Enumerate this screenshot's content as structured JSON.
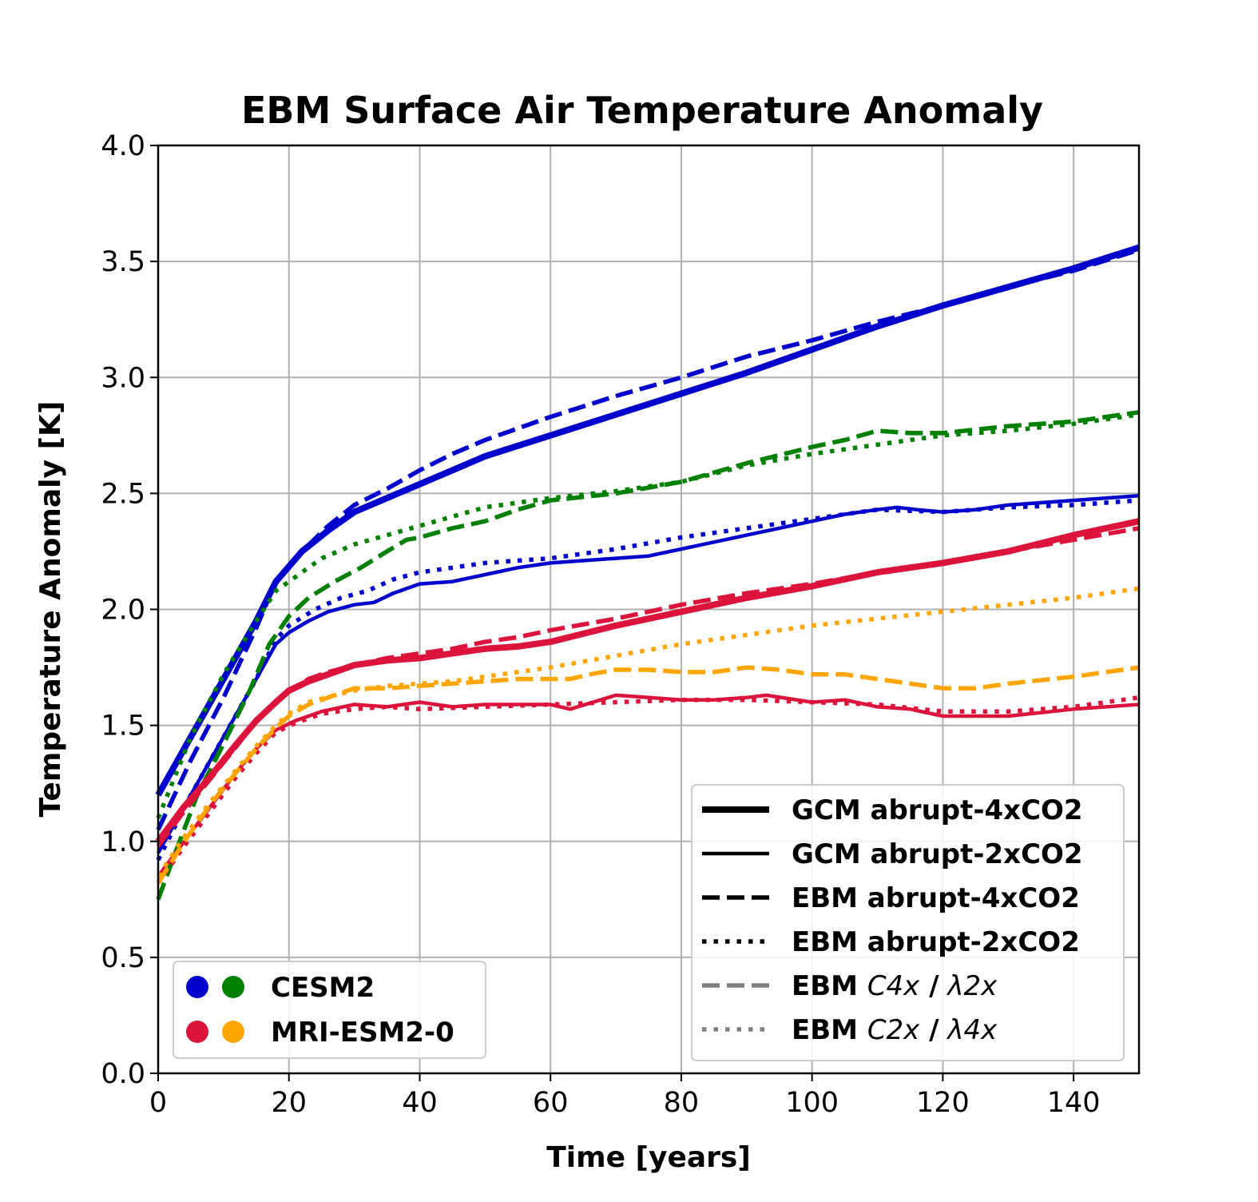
{
  "chart_data": {
    "type": "line",
    "title": "EBM Surface Air Temperature Anomaly",
    "xlabel": "Time [years]",
    "ylabel": "Temperature Anomaly [K]",
    "xlim": [
      0,
      150
    ],
    "ylim": [
      0.0,
      4.0
    ],
    "x_ticks": [
      0,
      20,
      40,
      60,
      80,
      100,
      120,
      140
    ],
    "x_tick_labels": [
      "0",
      "20",
      "40",
      "60",
      "80",
      "100",
      "120",
      "140"
    ],
    "y_ticks": [
      0.0,
      0.5,
      1.0,
      1.5,
      2.0,
      2.5,
      3.0,
      3.5,
      4.0
    ],
    "y_tick_labels": [
      "0.0",
      "0.5",
      "1.0",
      "1.5",
      "2.0",
      "2.5",
      "3.0",
      "3.5",
      "4.0"
    ],
    "grid": true,
    "style_legend": {
      "placement": "lower-right",
      "entries": [
        {
          "bold": "GCM abrupt-4xCO2",
          "ital": "",
          "tail": "",
          "style": "thick-solid",
          "color": "#000000"
        },
        {
          "bold": "GCM abrupt-2xCO2",
          "ital": "",
          "tail": "",
          "style": "solid",
          "color": "#000000"
        },
        {
          "bold": "EBM abrupt-4xCO2",
          "ital": "",
          "tail": "",
          "style": "dashed",
          "color": "#000000"
        },
        {
          "bold": "EBM abrupt-2xCO2",
          "ital": "",
          "tail": "",
          "style": "dotted",
          "color": "#000000"
        },
        {
          "bold": "EBM ",
          "ital": "C4x",
          "tail": " / λ2x",
          "style": "dashed",
          "color": "#808080"
        },
        {
          "bold": "EBM ",
          "ital": "C2x",
          "tail": " / λ4x",
          "style": "dotted",
          "color": "#808080"
        }
      ]
    },
    "model_legend": {
      "placement": "lower-left",
      "entries": [
        {
          "label": "CESM2",
          "colors": [
            "#0000cd",
            "#008000"
          ]
        },
        {
          "label": "MRI-ESM2-0",
          "colors": [
            "#dc143c",
            "#ffa500"
          ]
        }
      ]
    },
    "series": [
      {
        "model": "CESM2",
        "experiment": "GCM abrupt-4xCO2",
        "color": "#0000cd",
        "style": "thick-solid",
        "x": [
          0,
          5,
          10,
          15,
          18,
          22,
          26,
          30,
          35,
          40,
          45,
          50,
          60,
          70,
          80,
          90,
          100,
          110,
          120,
          130,
          140,
          150
        ],
        "y": [
          1.2,
          1.45,
          1.7,
          1.95,
          2.12,
          2.25,
          2.34,
          2.42,
          2.48,
          2.54,
          2.6,
          2.66,
          2.75,
          2.84,
          2.93,
          3.02,
          3.12,
          3.22,
          3.31,
          3.39,
          3.47,
          3.56
        ]
      },
      {
        "model": "CESM2",
        "experiment": "GCM abrupt-2xCO2",
        "color": "#0000cd",
        "style": "solid",
        "x": [
          0,
          5,
          10,
          15,
          18,
          20,
          23,
          26,
          30,
          33,
          36,
          40,
          45,
          50,
          55,
          60,
          65,
          70,
          75,
          80,
          85,
          90,
          95,
          100,
          105,
          110,
          113,
          116,
          120,
          125,
          130,
          140,
          150
        ],
        "y": [
          0.95,
          1.2,
          1.45,
          1.7,
          1.85,
          1.9,
          1.95,
          1.99,
          2.02,
          2.03,
          2.07,
          2.11,
          2.12,
          2.15,
          2.18,
          2.2,
          2.21,
          2.22,
          2.23,
          2.26,
          2.29,
          2.32,
          2.35,
          2.38,
          2.41,
          2.43,
          2.44,
          2.43,
          2.42,
          2.43,
          2.45,
          2.47,
          2.49
        ]
      },
      {
        "model": "CESM2",
        "experiment": "EBM abrupt-4xCO2",
        "color": "#0000cd",
        "style": "dashed",
        "x": [
          0,
          5,
          10,
          15,
          18,
          22,
          26,
          30,
          35,
          40,
          45,
          50,
          60,
          70,
          80,
          90,
          100,
          110,
          120,
          130,
          140,
          150
        ],
        "y": [
          1.05,
          1.35,
          1.62,
          1.92,
          2.12,
          2.25,
          2.36,
          2.45,
          2.52,
          2.6,
          2.67,
          2.73,
          2.83,
          2.92,
          3.0,
          3.09,
          3.16,
          3.24,
          3.31,
          3.39,
          3.46,
          3.55
        ]
      },
      {
        "model": "CESM2",
        "experiment": "EBM abrupt-2xCO2",
        "color": "#0000cd",
        "style": "dotted",
        "x": [
          0,
          5,
          10,
          15,
          18,
          20,
          24,
          28,
          32,
          36,
          40,
          45,
          50,
          60,
          70,
          80,
          90,
          100,
          110,
          120,
          130,
          140,
          150
        ],
        "y": [
          0.92,
          1.2,
          1.45,
          1.7,
          1.87,
          1.93,
          2.0,
          2.05,
          2.08,
          2.13,
          2.16,
          2.18,
          2.2,
          2.22,
          2.26,
          2.31,
          2.35,
          2.39,
          2.43,
          2.42,
          2.44,
          2.45,
          2.47
        ]
      },
      {
        "model": "CESM2",
        "experiment": "EBM C4x / λ2x",
        "color": "#008000",
        "style": "dashed",
        "x": [
          0,
          3,
          6,
          10,
          14,
          17,
          20,
          23,
          27,
          31,
          35,
          38,
          40,
          45,
          50,
          55,
          60,
          70,
          80,
          90,
          100,
          105,
          110,
          115,
          120,
          130,
          140,
          150
        ],
        "y": [
          0.75,
          0.98,
          1.2,
          1.42,
          1.65,
          1.85,
          1.97,
          2.05,
          2.12,
          2.18,
          2.25,
          2.3,
          2.31,
          2.35,
          2.38,
          2.43,
          2.47,
          2.5,
          2.55,
          2.63,
          2.7,
          2.73,
          2.77,
          2.76,
          2.76,
          2.79,
          2.81,
          2.85
        ]
      },
      {
        "model": "CESM2",
        "experiment": "EBM C2x / λ4x",
        "color": "#008000",
        "style": "dotted",
        "x": [
          0,
          5,
          10,
          15,
          18,
          21,
          25,
          30,
          35,
          40,
          45,
          50,
          55,
          60,
          70,
          80,
          90,
          100,
          110,
          120,
          130,
          140,
          150
        ],
        "y": [
          1.1,
          1.45,
          1.72,
          1.95,
          2.08,
          2.14,
          2.22,
          2.28,
          2.32,
          2.36,
          2.4,
          2.44,
          2.46,
          2.48,
          2.51,
          2.55,
          2.62,
          2.67,
          2.71,
          2.75,
          2.77,
          2.8,
          2.84
        ]
      },
      {
        "model": "MRI-ESM2-0",
        "experiment": "GCM abrupt-4xCO2",
        "color": "#dc143c",
        "style": "thick-solid",
        "x": [
          0,
          4,
          8,
          12,
          15,
          18,
          20,
          23,
          26,
          30,
          35,
          40,
          45,
          50,
          55,
          60,
          70,
          80,
          90,
          100,
          110,
          120,
          130,
          140,
          150
        ],
        "y": [
          1.0,
          1.15,
          1.28,
          1.42,
          1.52,
          1.6,
          1.65,
          1.69,
          1.72,
          1.76,
          1.78,
          1.79,
          1.81,
          1.83,
          1.84,
          1.86,
          1.93,
          1.99,
          2.05,
          2.1,
          2.16,
          2.2,
          2.25,
          2.32,
          2.38
        ]
      },
      {
        "model": "MRI-ESM2-0",
        "experiment": "GCM abrupt-2xCO2",
        "color": "#dc143c",
        "style": "solid",
        "x": [
          0,
          4,
          8,
          12,
          15,
          18,
          21,
          25,
          30,
          35,
          40,
          45,
          50,
          55,
          60,
          63,
          70,
          75,
          80,
          85,
          90,
          93,
          100,
          105,
          110,
          115,
          120,
          125,
          130,
          140,
          150
        ],
        "y": [
          0.85,
          1.0,
          1.15,
          1.3,
          1.4,
          1.48,
          1.52,
          1.56,
          1.59,
          1.58,
          1.6,
          1.58,
          1.59,
          1.59,
          1.59,
          1.57,
          1.63,
          1.62,
          1.61,
          1.61,
          1.62,
          1.63,
          1.6,
          1.61,
          1.58,
          1.57,
          1.54,
          1.54,
          1.54,
          1.57,
          1.59
        ]
      },
      {
        "model": "MRI-ESM2-0",
        "experiment": "EBM abrupt-4xCO2",
        "color": "#dc143c",
        "style": "dashed",
        "x": [
          0,
          4,
          8,
          12,
          15,
          18,
          20,
          23,
          26,
          30,
          35,
          40,
          45,
          50,
          55,
          60,
          70,
          80,
          90,
          100,
          110,
          120,
          130,
          140,
          150
        ],
        "y": [
          0.98,
          1.13,
          1.27,
          1.41,
          1.52,
          1.6,
          1.65,
          1.7,
          1.73,
          1.76,
          1.79,
          1.81,
          1.83,
          1.86,
          1.88,
          1.91,
          1.96,
          2.02,
          2.07,
          2.11,
          2.16,
          2.2,
          2.25,
          2.3,
          2.35
        ]
      },
      {
        "model": "MRI-ESM2-0",
        "experiment": "EBM abrupt-2xCO2",
        "color": "#dc143c",
        "style": "dotted",
        "x": [
          0,
          4,
          8,
          12,
          15,
          18,
          21,
          25,
          30,
          35,
          40,
          50,
          60,
          70,
          80,
          90,
          100,
          110,
          120,
          130,
          140,
          150
        ],
        "y": [
          0.82,
          0.98,
          1.13,
          1.28,
          1.38,
          1.47,
          1.51,
          1.55,
          1.57,
          1.58,
          1.57,
          1.58,
          1.59,
          1.6,
          1.61,
          1.61,
          1.6,
          1.59,
          1.56,
          1.56,
          1.58,
          1.62
        ]
      },
      {
        "model": "MRI-ESM2-0",
        "experiment": "EBM C4x / λ2x",
        "color": "#ffa500",
        "style": "dashed",
        "x": [
          0,
          4,
          8,
          12,
          15,
          18,
          20,
          23,
          27,
          30,
          35,
          40,
          45,
          50,
          55,
          60,
          63,
          66,
          70,
          75,
          80,
          85,
          90,
          95,
          100,
          105,
          110,
          115,
          120,
          125,
          130,
          140,
          150
        ],
        "y": [
          0.82,
          1.0,
          1.16,
          1.3,
          1.4,
          1.49,
          1.54,
          1.59,
          1.63,
          1.66,
          1.66,
          1.67,
          1.68,
          1.69,
          1.7,
          1.7,
          1.7,
          1.72,
          1.74,
          1.74,
          1.73,
          1.73,
          1.75,
          1.74,
          1.72,
          1.72,
          1.7,
          1.68,
          1.66,
          1.66,
          1.68,
          1.71,
          1.75
        ]
      },
      {
        "model": "MRI-ESM2-0",
        "experiment": "EBM C2x / λ4x",
        "color": "#ffa500",
        "style": "dotted",
        "x": [
          0,
          4,
          8,
          12,
          15,
          18,
          20,
          23,
          27,
          30,
          35,
          40,
          45,
          50,
          55,
          60,
          70,
          80,
          90,
          100,
          110,
          120,
          130,
          140,
          150
        ],
        "y": [
          0.85,
          1.02,
          1.17,
          1.31,
          1.41,
          1.5,
          1.55,
          1.6,
          1.63,
          1.65,
          1.67,
          1.68,
          1.69,
          1.71,
          1.73,
          1.75,
          1.8,
          1.85,
          1.89,
          1.93,
          1.96,
          1.99,
          2.02,
          2.05,
          2.09
        ]
      }
    ]
  }
}
